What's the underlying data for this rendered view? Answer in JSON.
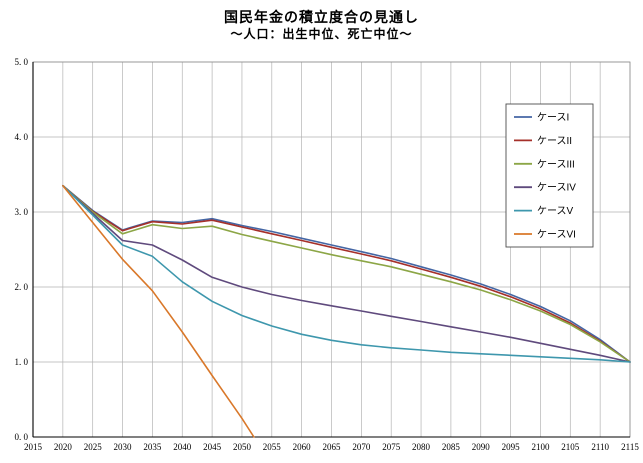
{
  "page": {
    "background": "#ffffff"
  },
  "chart_data": {
    "type": "line",
    "title": "国民年金の積立度合の見通し",
    "subtitle": "～人口：出生中位、死亡中位～",
    "xlim": [
      2015,
      2115
    ],
    "ylim": [
      0,
      5
    ],
    "xticks": [
      2015,
      2020,
      2025,
      2030,
      2035,
      2040,
      2045,
      2050,
      2055,
      2060,
      2065,
      2070,
      2075,
      2080,
      2085,
      2090,
      2095,
      2100,
      2105,
      2110,
      2115
    ],
    "yticks": [
      0,
      1,
      2,
      3,
      4,
      5
    ],
    "ytick_labels": [
      "0. 0",
      "1. 0",
      "2. 0",
      "3. 0",
      "4. 0",
      "5. 0"
    ],
    "grid": true,
    "grid_color": "#b3b3b3",
    "axis_color": "#000000",
    "legend_position": "upper-right-inside",
    "legend_border_color": "#4d4d4d",
    "series": [
      {
        "name": "ケースI",
        "color": "#4466a4",
        "x": [
          2020,
          2025,
          2030,
          2035,
          2040,
          2045,
          2050,
          2055,
          2060,
          2065,
          2070,
          2075,
          2080,
          2085,
          2090,
          2095,
          2100,
          2105,
          2110,
          2115
        ],
        "y": [
          3.35,
          3.02,
          2.76,
          2.88,
          2.86,
          2.91,
          2.82,
          2.74,
          2.65,
          2.56,
          2.47,
          2.38,
          2.27,
          2.16,
          2.04,
          1.9,
          1.74,
          1.55,
          1.3,
          1.0
        ]
      },
      {
        "name": "ケースII",
        "color": "#a5302a",
        "x": [
          2020,
          2025,
          2030,
          2035,
          2040,
          2045,
          2050,
          2055,
          2060,
          2065,
          2070,
          2075,
          2080,
          2085,
          2090,
          2095,
          2100,
          2105,
          2110,
          2115
        ],
        "y": [
          3.35,
          3.01,
          2.75,
          2.87,
          2.84,
          2.89,
          2.8,
          2.71,
          2.62,
          2.53,
          2.44,
          2.35,
          2.24,
          2.13,
          2.01,
          1.87,
          1.71,
          1.52,
          1.28,
          1.0
        ]
      },
      {
        "name": "ケースIII",
        "color": "#8ca646",
        "x": [
          2020,
          2025,
          2030,
          2035,
          2040,
          2045,
          2050,
          2055,
          2060,
          2065,
          2070,
          2075,
          2080,
          2085,
          2090,
          2095,
          2100,
          2105,
          2110,
          2115
        ],
        "y": [
          3.35,
          3.0,
          2.71,
          2.83,
          2.78,
          2.81,
          2.7,
          2.61,
          2.52,
          2.43,
          2.35,
          2.27,
          2.17,
          2.07,
          1.96,
          1.83,
          1.68,
          1.5,
          1.27,
          1.0
        ]
      },
      {
        "name": "ケースIV",
        "color": "#5f4a7d",
        "x": [
          2020,
          2025,
          2030,
          2035,
          2040,
          2045,
          2050,
          2055,
          2060,
          2065,
          2070,
          2075,
          2080,
          2085,
          2090,
          2095,
          2100,
          2105,
          2110,
          2115
        ],
        "y": [
          3.35,
          2.98,
          2.62,
          2.56,
          2.36,
          2.13,
          2.0,
          1.9,
          1.82,
          1.75,
          1.68,
          1.61,
          1.54,
          1.47,
          1.4,
          1.33,
          1.25,
          1.17,
          1.09,
          1.0
        ]
      },
      {
        "name": "ケースV",
        "color": "#3e97ad",
        "x": [
          2020,
          2025,
          2030,
          2035,
          2040,
          2045,
          2050,
          2055,
          2060,
          2065,
          2070,
          2075,
          2080,
          2085,
          2090,
          2095,
          2100,
          2105,
          2110,
          2115
        ],
        "y": [
          3.35,
          2.96,
          2.56,
          2.41,
          2.07,
          1.81,
          1.62,
          1.48,
          1.37,
          1.29,
          1.23,
          1.19,
          1.16,
          1.13,
          1.11,
          1.09,
          1.07,
          1.05,
          1.03,
          1.0
        ]
      },
      {
        "name": "ケースVI",
        "color": "#d9782a",
        "x": [
          2020,
          2025,
          2030,
          2035,
          2040,
          2045,
          2050,
          2052
        ],
        "y": [
          3.35,
          2.86,
          2.37,
          1.95,
          1.4,
          0.82,
          0.25,
          0.0
        ]
      }
    ]
  }
}
